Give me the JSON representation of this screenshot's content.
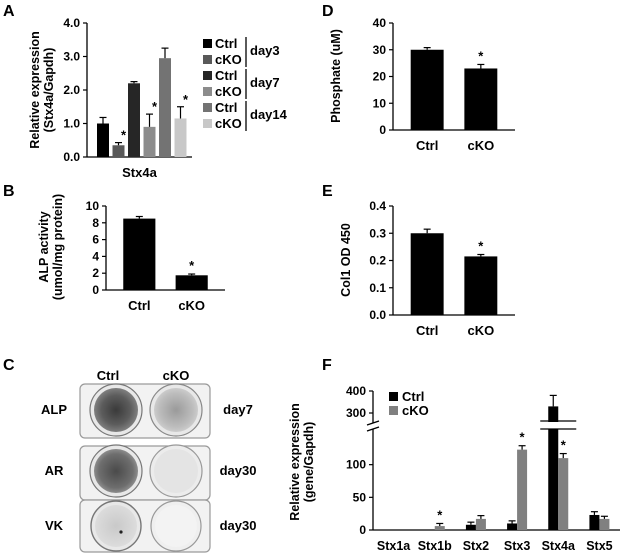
{
  "panels": {
    "A": "A",
    "B": "B",
    "C": "C",
    "D": "D",
    "E": "E",
    "F": "F"
  },
  "chart_data": [
    {
      "panel": "A",
      "type": "bar",
      "ylabel": "Relative expression (Stx4a/Gapdh)",
      "ylabel_lines": [
        "Relative expression",
        "(Stx4a/Gapdh)"
      ],
      "xlabel": "Stx4a",
      "ylim": [
        0,
        4.0
      ],
      "yticks": [
        "0.0",
        "1.0",
        "2.0",
        "3.0",
        "4.0"
      ],
      "ytick_values": [
        0,
        1,
        2,
        3,
        4
      ],
      "series": [
        {
          "name": "Ctrl",
          "group": "day3",
          "value": 1.0,
          "err": 0.18,
          "sig": false,
          "color": "#000000"
        },
        {
          "name": "cKO",
          "group": "day3",
          "value": 0.35,
          "err": 0.08,
          "sig": true,
          "color": "#595959"
        },
        {
          "name": "Ctrl",
          "group": "day7",
          "value": 2.2,
          "err": 0.05,
          "sig": false,
          "color": "#262626"
        },
        {
          "name": "cKO",
          "group": "day7",
          "value": 0.9,
          "err": 0.38,
          "sig": true,
          "color": "#8c8c8c"
        },
        {
          "name": "Ctrl",
          "group": "day14",
          "value": 2.95,
          "err": 0.3,
          "sig": false,
          "color": "#737373"
        },
        {
          "name": "cKO",
          "group": "day14",
          "value": 1.15,
          "err": 0.35,
          "sig": true,
          "color": "#c8c8c8"
        }
      ],
      "legend": [
        {
          "label": "Ctrl",
          "color": "#000000"
        },
        {
          "label": "cKO",
          "color": "#595959"
        },
        {
          "label": "Ctrl",
          "color": "#262626"
        },
        {
          "label": "cKO",
          "color": "#8c8c8c"
        },
        {
          "label": "Ctrl",
          "color": "#737373"
        },
        {
          "label": "cKO",
          "color": "#c8c8c8"
        }
      ],
      "legend_groups": [
        "day3",
        "day7",
        "day14"
      ],
      "sig_mark": "*"
    },
    {
      "panel": "B",
      "type": "bar",
      "ylabel": "ALP activity (umol/mg protein)",
      "ylabel_lines": [
        "ALP activity",
        "(umol/mg protein)"
      ],
      "categories": [
        "Ctrl",
        "cKO"
      ],
      "values": [
        8.5,
        1.75
      ],
      "errors": [
        0.25,
        0.15
      ],
      "sig": [
        false,
        true
      ],
      "ylim": [
        0,
        10
      ],
      "yticks": [
        "0",
        "2",
        "4",
        "6",
        "8",
        "10"
      ],
      "ytick_values": [
        0,
        2,
        4,
        6,
        8,
        10
      ],
      "sig_mark": "*"
    },
    {
      "panel": "D",
      "type": "bar",
      "ylabel": "Phosphate (uM)",
      "ylabel_lines": [
        "Phosphate (uM)"
      ],
      "categories": [
        "Ctrl",
        "cKO"
      ],
      "values": [
        30,
        23
      ],
      "errors": [
        0.8,
        1.5
      ],
      "sig": [
        false,
        true
      ],
      "ylim": [
        0,
        40
      ],
      "yticks": [
        "0",
        "10",
        "20",
        "30",
        "40"
      ],
      "ytick_values": [
        0,
        10,
        20,
        30,
        40
      ],
      "sig_mark": "*"
    },
    {
      "panel": "E",
      "type": "bar",
      "ylabel": "Col1 OD 450",
      "ylabel_lines": [
        "Col1 OD 450"
      ],
      "categories": [
        "Ctrl",
        "cKO"
      ],
      "values": [
        0.3,
        0.215
      ],
      "errors": [
        0.015,
        0.007
      ],
      "sig": [
        false,
        true
      ],
      "ylim": [
        0,
        0.4
      ],
      "yticks": [
        "0.0",
        "0.1",
        "0.2",
        "0.3",
        "0.4"
      ],
      "ytick_values": [
        0,
        0.1,
        0.2,
        0.3,
        0.4
      ],
      "sig_mark": "*"
    },
    {
      "panel": "F",
      "type": "bar",
      "ylabel": "Relative expression (gene/Gapdh)",
      "ylabel_lines": [
        "Relative expression",
        "(gene/Gapdh)"
      ],
      "categories": [
        "Stx1a",
        "Stx1b",
        "Stx2",
        "Stx3",
        "Stx4a",
        "Stx5"
      ],
      "axis_break": [
        150,
        250
      ],
      "ylim": [
        0,
        400
      ],
      "yticks": [
        "0",
        "50",
        "100",
        "300",
        "400"
      ],
      "ytick_values": [
        0,
        50,
        100,
        300,
        400
      ],
      "legend_position": "top-left",
      "series": [
        {
          "name": "Ctrl",
          "color": "#000000",
          "values": [
            0,
            0,
            8,
            10,
            330,
            23
          ],
          "errors": [
            0,
            0,
            4,
            4,
            50,
            5
          ],
          "sig": [
            false,
            false,
            false,
            false,
            false,
            false
          ]
        },
        {
          "name": "cKO",
          "color": "#808080",
          "values": [
            0,
            6,
            17,
            123,
            110,
            17
          ],
          "errors": [
            0,
            4,
            5,
            6,
            7,
            4
          ],
          "sig": [
            false,
            true,
            false,
            true,
            true,
            false
          ]
        }
      ],
      "sig_mark": "*"
    }
  ],
  "staining": {
    "columns": [
      "Ctrl",
      "cKO"
    ],
    "rows": [
      {
        "stain": "ALP",
        "day": "day7"
      },
      {
        "stain": "AR",
        "day": "day30"
      },
      {
        "stain": "VK",
        "day": "day30"
      }
    ]
  }
}
